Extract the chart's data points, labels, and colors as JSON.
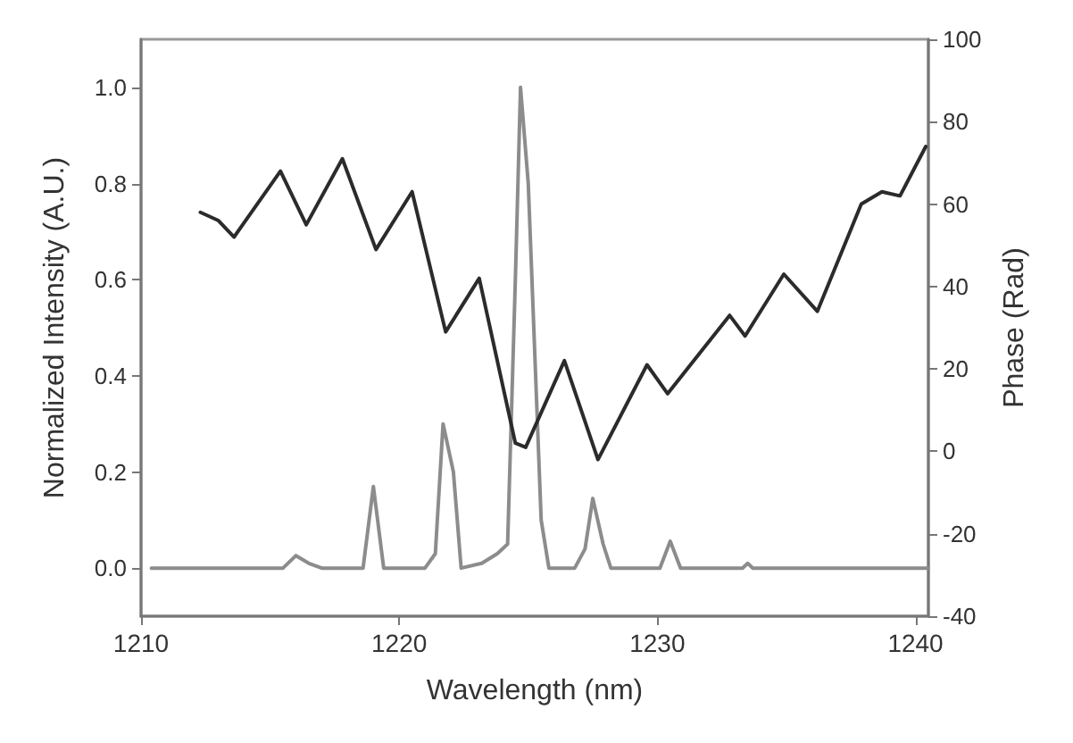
{
  "chart_data": {
    "type": "line",
    "xlabel": "Wavelength (nm)",
    "ylabel": "Normalized Intensity (A.U.)",
    "y2label": "Phase (Rad)",
    "xlim": [
      1210,
      1240.5
    ],
    "xticks": [
      1210,
      1220,
      1230,
      1240
    ],
    "ylim": [
      -0.1,
      1.1
    ],
    "yticks": [
      {
        "value": 0,
        "label": "0.0"
      },
      {
        "value": 0.2,
        "label": "0.2"
      },
      {
        "value": 0.4,
        "label": "0.4"
      },
      {
        "value": 0.6,
        "label": "0.6"
      },
      {
        "value": 0.8,
        "label": "0.8"
      },
      {
        "value": 1,
        "label": "1.0"
      }
    ],
    "y2lim": [
      -40,
      100
    ],
    "y2ticks": [
      -40,
      -20,
      0,
      20,
      40,
      60,
      80,
      100
    ],
    "grid": false,
    "marker": "none",
    "line_style": "solid",
    "series": [
      {
        "color": "#8c8c8c",
        "x": [
          1210.4,
          1215.5,
          1216.0,
          1216.5,
          1217,
          1218.6,
          1219.0,
          1219.4,
          1221.0,
          1221.4,
          1221.7,
          1222.1,
          1222.4,
          1223.2,
          1223.8,
          1224.2,
          1224.5,
          1224.7,
          1225.0,
          1225.5,
          1225.8,
          1226.8,
          1227.2,
          1227.5,
          1227.9,
          1228.2,
          1230.1,
          1230.5,
          1230.9,
          1233.3,
          1233.5,
          1233.7,
          1240.5
        ],
        "values": [
          0,
          0,
          0.026,
          0.01,
          0,
          0,
          0.17,
          0,
          0,
          0.03,
          0.3,
          0.2,
          0,
          0.01,
          0.03,
          0.05,
          0.6,
          1.0,
          0.8,
          0.1,
          0,
          0,
          0.04,
          0.145,
          0.05,
          0,
          0,
          0.056,
          0,
          0,
          0.01,
          0,
          0
        ]
      },
      {
        "color": "#2b2b2b",
        "axis": "y2",
        "x": [
          1212.3,
          1213.0,
          1213.6,
          1215.4,
          1216.4,
          1217.8,
          1219.1,
          1220.5,
          1221.8,
          1223.1,
          1224.5,
          1224.9,
          1226.4,
          1227.7,
          1229.6,
          1230.4,
          1232.8,
          1233.4,
          1234.9,
          1236.2,
          1237.9,
          1238.7,
          1239.4,
          1240.4
        ],
        "values": [
          58,
          56,
          52,
          68,
          55,
          71,
          49,
          63,
          29,
          42,
          2,
          1,
          22,
          -2,
          21,
          14,
          33,
          28,
          43,
          34,
          60,
          63,
          62,
          74
        ]
      }
    ]
  }
}
